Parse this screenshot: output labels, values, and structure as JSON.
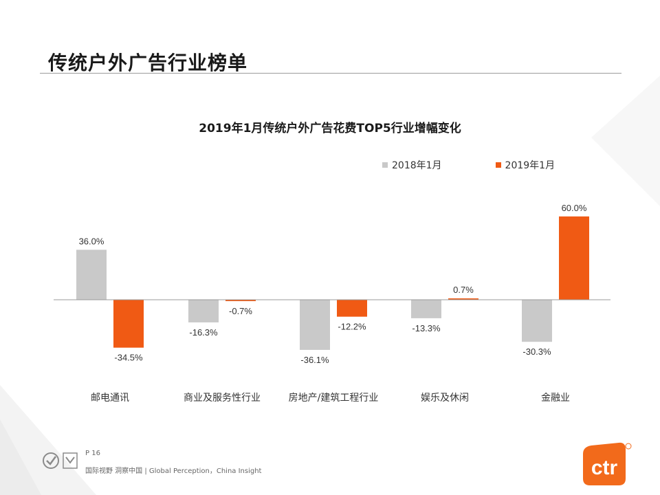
{
  "page": {
    "title": "传统户外广告行业榜单",
    "page_number": "P 16",
    "tagline": "国际视野 洞察中国 | Global Perception，China Insight",
    "brand_logo": "ctr"
  },
  "colors": {
    "series_2018": "#c9c9c9",
    "series_2019": "#f05a14",
    "accent_brand": "#f26a1b",
    "text": "#333333"
  },
  "chart_data": {
    "type": "bar",
    "title": "2019年1月传统户外广告花费TOP5行业增幅变化",
    "categories": [
      "邮电通讯",
      "商业及服务性行业",
      "房地产/建筑工程行业",
      "娱乐及休闲",
      "金融业"
    ],
    "series": [
      {
        "name": "2018年1月",
        "values": [
          36.0,
          -16.3,
          -36.1,
          -13.3,
          -30.3
        ],
        "labels": [
          "36.0%",
          "-16.3%",
          "-36.1%",
          "-13.3%",
          "-30.3%"
        ]
      },
      {
        "name": "2019年1月",
        "values": [
          -34.5,
          -0.7,
          -12.2,
          0.7,
          60.0
        ],
        "labels": [
          "-34.5%",
          "-0.7%",
          "-12.2%",
          "0.7%",
          "60.0%"
        ]
      }
    ],
    "xlabel": "",
    "ylabel": "",
    "unit": "%",
    "legend_position": "top-right",
    "grid": false
  }
}
